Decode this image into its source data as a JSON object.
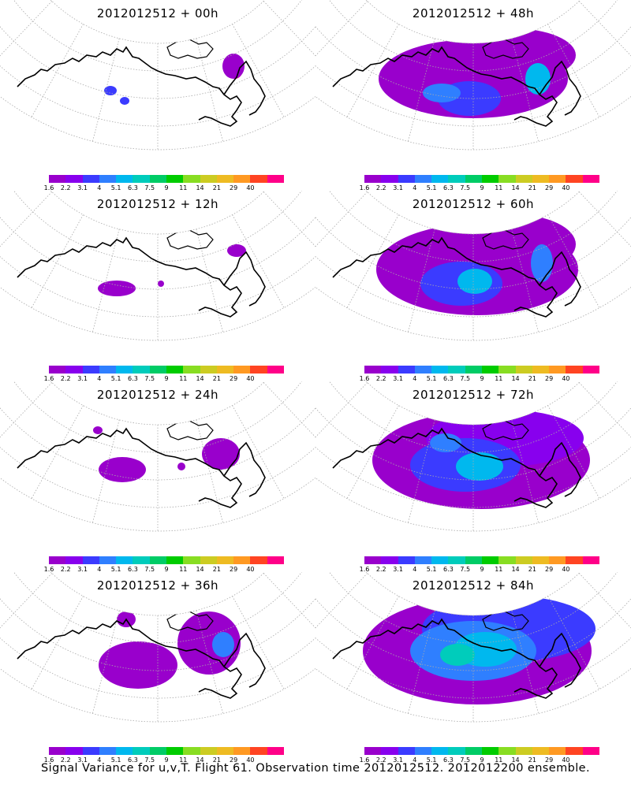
{
  "panels": [
    {
      "title": "2012012512 + 00h",
      "spread": 0
    },
    {
      "title": "2012012512 + 48h",
      "spread": 4
    },
    {
      "title": "2012012512 + 12h",
      "spread": 1
    },
    {
      "title": "2012012512 + 60h",
      "spread": 5
    },
    {
      "title": "2012012512 + 24h",
      "spread": 2
    },
    {
      "title": "2012012512 + 72h",
      "spread": 6
    },
    {
      "title": "2012012512 + 36h",
      "spread": 3
    },
    {
      "title": "2012012512 + 84h",
      "spread": 7
    }
  ],
  "colorbar": {
    "labels": [
      "1.6",
      "2.2",
      "3.1",
      "4",
      "5.1",
      "6.3",
      "7.5",
      "9",
      "11",
      "14",
      "21",
      "29",
      "40"
    ],
    "colors": [
      "#9900cc",
      "#8800ee",
      "#3b3bff",
      "#2f7fff",
      "#00b8ee",
      "#00ccbb",
      "#00cc66",
      "#00cc00",
      "#88dd22",
      "#cccc22",
      "#eebb22",
      "#ff9922",
      "#ff4422",
      "#ff0088"
    ]
  },
  "caption": "Signal Variance for u,v,T. Flight 61. Observation time 2012012512. 2012012200 ensemble."
}
